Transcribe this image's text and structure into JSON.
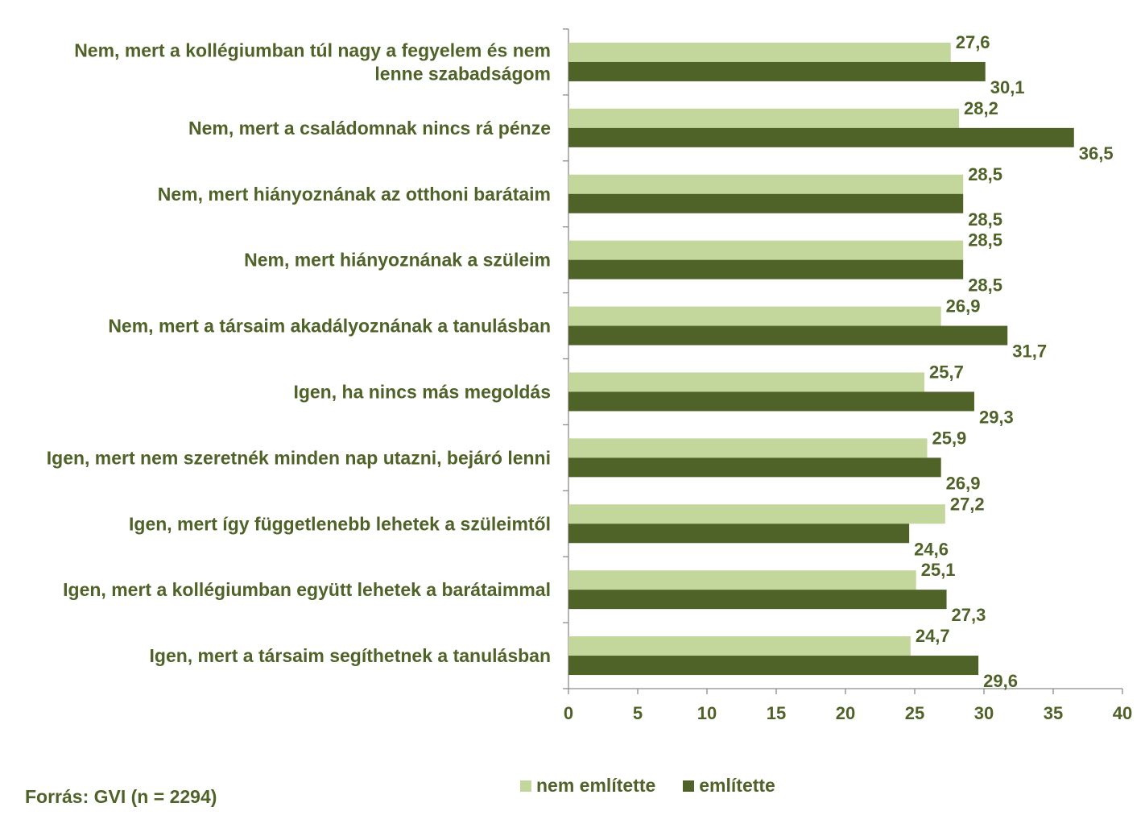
{
  "chart_data": {
    "type": "bar",
    "orientation": "horizontal",
    "categories": [
      [
        "Nem, mert a kollégiumban túl nagy a fegyelem és nem",
        "lenne szabadságom"
      ],
      [
        "Nem, mert a családomnak nincs rá pénze"
      ],
      [
        "Nem, mert hiányoznának az otthoni barátaim"
      ],
      [
        "Nem, mert hiányoznának a szüleim"
      ],
      [
        "Nem, mert a társaim akadályoznának a tanulásban"
      ],
      [
        "Igen, ha nincs más megoldás"
      ],
      [
        "Igen, mert nem szeretnék minden nap utazni, bejáró lenni"
      ],
      [
        "Igen, mert így függetlenebb lehetek a szüleimtől"
      ],
      [
        "Igen, mert a kollégiumban együtt lehetek a barátaimmal"
      ],
      [
        "Igen, mert a társaim segíthetnek a tanulásban"
      ]
    ],
    "series": [
      {
        "name": "nem említette",
        "color": "#c3d69b",
        "values": [
          27.6,
          28.2,
          28.5,
          28.5,
          26.9,
          25.7,
          25.9,
          27.2,
          25.1,
          24.7
        ],
        "labels": [
          "27,6",
          "28,2",
          "28,5",
          "28,5",
          "26,9",
          "25,7",
          "25,9",
          "27,2",
          "25,1",
          "24,7"
        ]
      },
      {
        "name": "említette",
        "color": "#4f6228",
        "values": [
          30.1,
          36.5,
          28.5,
          28.5,
          31.7,
          29.3,
          26.9,
          24.6,
          27.3,
          29.6
        ],
        "labels": [
          "30,1",
          "36,5",
          "28,5",
          "28,5",
          "31,7",
          "29,3",
          "26,9",
          "24,6",
          "27,3",
          "29,6"
        ]
      }
    ],
    "xlim": [
      0,
      40
    ],
    "xticks": [
      0,
      5,
      10,
      15,
      20,
      25,
      30,
      35,
      40
    ],
    "grid": false,
    "legend_position": "bottom"
  },
  "source": "Forrás: GVI (n = 2294)"
}
